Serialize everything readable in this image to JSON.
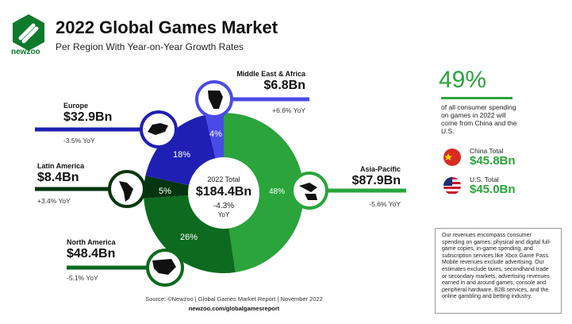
{
  "header": {
    "title": "2022 Global Games Market",
    "subtitle": "Per Region With Year-on-Year Growth Rates",
    "logo_text": "newzoo"
  },
  "chart_data": {
    "type": "pie",
    "title": "2022 Global Games Market",
    "subtitle": "Per Region With Year-on-Year Growth Rates",
    "total": {
      "label": "2022 Total",
      "value": "$184.4Bn",
      "yoy_value": "-4.3%",
      "yoy_label": "YoY"
    },
    "slices": [
      {
        "region": "Asia-Pacific",
        "value": "$87.9Bn",
        "amount": 87.9,
        "share": 48,
        "share_label": "48%",
        "yoy": "-5.6% YoY",
        "color": "#2aa43b"
      },
      {
        "region": "North America",
        "value": "$48.4Bn",
        "amount": 48.4,
        "share": 26,
        "share_label": "26%",
        "yoy": "-5.1% YoY",
        "color": "#0c6b1f"
      },
      {
        "region": "Latin America",
        "value": "$8.4Bn",
        "amount": 8.4,
        "share": 5,
        "share_label": "5%",
        "yoy": "+3.4% YoY",
        "color": "#06360f"
      },
      {
        "region": "Europe",
        "value": "$32.9Bn",
        "amount": 32.9,
        "share": 18,
        "share_label": "18%",
        "yoy": "-3.5% YoY",
        "color": "#1f1fb3"
      },
      {
        "region": "Middle East & Africa",
        "value": "$6.8Bn",
        "amount": 6.8,
        "share": 4,
        "share_label": "4%",
        "yoy": "+6.6% YoY",
        "color": "#4a4ae8"
      }
    ]
  },
  "side": {
    "big_percent": "49%",
    "note": "of all consumer spending on games in 2022 will come from China and the U.S.",
    "countries": [
      {
        "name": "China Total",
        "value": "$45.8Bn",
        "flag": "china-flag"
      },
      {
        "name": "U.S. Total",
        "value": "$45.0Bn",
        "flag": "us-flag"
      }
    ]
  },
  "footnote": "Our revenues encompass consumer spending on games: physical and digital full-game copies, in-game spending, and subscription services like Xbox Game Pass. Mobile revenues exclude advertising. Our estimates exclude taxes, secondhand trade or secondary markets, advertising revenues earned in and around games, console and peripheral hardware, B2B services, and the online gambling and betting industry.",
  "source": "Source: ©Newzoo | Global Games Market Report | November 2022",
  "source_url": "newzoo.com/globalgamesreport"
}
